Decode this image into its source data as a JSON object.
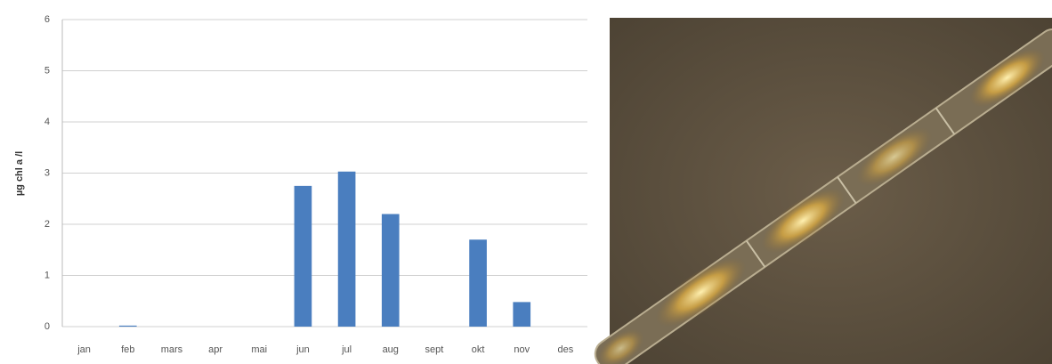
{
  "chart_data": {
    "type": "bar",
    "y_label": "µg chl a /l",
    "categories": [
      "jan",
      "feb",
      "mars",
      "apr",
      "mai",
      "jun",
      "jul",
      "aug",
      "sept",
      "okt",
      "nov",
      "des"
    ],
    "values": [
      0,
      0.02,
      0,
      0,
      0,
      2.75,
      3.03,
      2.2,
      0,
      1.7,
      0.48,
      0
    ],
    "color": "#4a7ebf",
    "ylim": [
      0,
      6
    ],
    "yticks": [
      0,
      1,
      2,
      3,
      4,
      5,
      6
    ],
    "grid": true
  }
}
